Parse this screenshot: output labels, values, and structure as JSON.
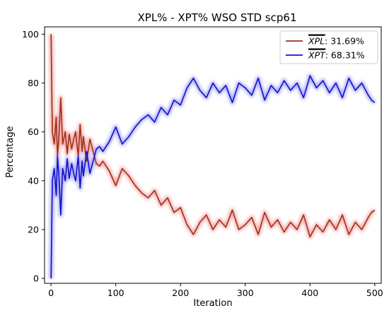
{
  "chart_data": {
    "type": "line",
    "title": "XPL% - XPT% WSO STD scp61",
    "xlabel": "Iteration",
    "ylabel": "Percentage",
    "xlim": [
      -10,
      510
    ],
    "ylim": [
      -2,
      103
    ],
    "xticks": [
      0,
      100,
      200,
      300,
      400,
      500
    ],
    "yticks": [
      0,
      20,
      40,
      60,
      80,
      100
    ],
    "grid": false,
    "legend_position": "top-right",
    "series": [
      {
        "label": "XPL",
        "value_text": ": 31.69%",
        "overline": true,
        "color": "#a0301a",
        "highlight_color": "#e02020",
        "x": [
          0,
          2,
          5,
          8,
          10,
          12,
          15,
          18,
          22,
          25,
          28,
          32,
          35,
          38,
          42,
          45,
          48,
          50,
          55,
          60,
          65,
          70,
          75,
          80,
          90,
          100,
          110,
          120,
          130,
          140,
          150,
          160,
          170,
          180,
          190,
          200,
          210,
          215,
          220,
          230,
          240,
          250,
          260,
          270,
          280,
          290,
          300,
          310,
          320,
          330,
          340,
          350,
          360,
          370,
          380,
          390,
          400,
          410,
          420,
          430,
          440,
          450,
          460,
          470,
          480,
          490,
          495,
          500
        ],
        "y": [
          100,
          60,
          55,
          66,
          50,
          57,
          74,
          55,
          60,
          51,
          59,
          53,
          57,
          60,
          50,
          63,
          52,
          58,
          48,
          57,
          52,
          47,
          46,
          48,
          44,
          38,
          45,
          42,
          38,
          35,
          33,
          36,
          30,
          33,
          27,
          29,
          22,
          20,
          18,
          23,
          26,
          20,
          24,
          21,
          28,
          20,
          22,
          25,
          18,
          27,
          21,
          24,
          19,
          23,
          20,
          26,
          17,
          22,
          19,
          24,
          20,
          26,
          18,
          23,
          20,
          25,
          27,
          28
        ]
      },
      {
        "label": "XPT",
        "value_text": ": 68.31%",
        "overline": true,
        "color": "#1010cc",
        "highlight_color": "#2020e8",
        "x": [
          0,
          2,
          5,
          8,
          10,
          12,
          15,
          18,
          22,
          25,
          28,
          32,
          35,
          38,
          42,
          45,
          48,
          50,
          55,
          60,
          65,
          70,
          75,
          80,
          90,
          100,
          110,
          120,
          130,
          140,
          150,
          160,
          170,
          180,
          190,
          200,
          210,
          215,
          220,
          230,
          240,
          250,
          260,
          270,
          280,
          290,
          300,
          310,
          320,
          330,
          340,
          350,
          360,
          370,
          380,
          390,
          400,
          410,
          420,
          430,
          440,
          450,
          460,
          470,
          480,
          490,
          495,
          500
        ],
        "y": [
          0,
          40,
          45,
          34,
          50,
          43,
          26,
          45,
          40,
          49,
          41,
          47,
          43,
          40,
          50,
          37,
          48,
          42,
          52,
          43,
          48,
          53,
          54,
          52,
          56,
          62,
          55,
          58,
          62,
          65,
          67,
          64,
          70,
          67,
          73,
          71,
          78,
          80,
          82,
          77,
          74,
          80,
          76,
          79,
          72,
          80,
          78,
          75,
          82,
          73,
          79,
          76,
          81,
          77,
          80,
          74,
          83,
          78,
          81,
          76,
          80,
          74,
          82,
          77,
          80,
          75,
          73,
          72
        ]
      }
    ]
  }
}
